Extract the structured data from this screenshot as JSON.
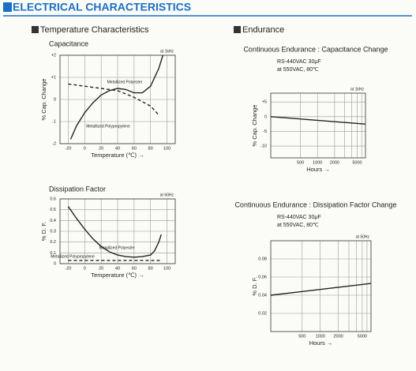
{
  "title": "ELECTRICAL CHARACTERISTICS",
  "sections": [
    "Temperature Characteristics",
    "Endurance"
  ],
  "chart_data": [
    {
      "type": "line",
      "title": "Capacitance",
      "note": "at 1kHz",
      "xlabel": "Temperature (℃) →",
      "ylabel": "% Cap. Change",
      "xlim": [
        -30,
        110
      ],
      "xticks": [
        -20,
        0,
        20,
        40,
        60,
        80,
        100
      ],
      "ylim": [
        -2,
        2
      ],
      "yticks": [
        {
          "value": 2,
          "label": "+2"
        },
        {
          "value": 1,
          "label": "+1"
        },
        0,
        -1,
        -2
      ],
      "grid": true,
      "log_x": false,
      "series": [
        {
          "name": "Metallized Polyester",
          "color": "#222222",
          "style": "solid",
          "x": [
            -17,
            -10,
            0,
            10,
            20,
            30,
            40,
            50,
            60,
            70,
            80,
            90,
            95
          ],
          "values": [
            -1.8,
            -1.2,
            -0.6,
            -0.15,
            0.2,
            0.4,
            0.5,
            0.45,
            0.3,
            0.3,
            0.6,
            1.4,
            2.0
          ]
        },
        {
          "name": "Metallized Polypropylene",
          "color": "#222222",
          "style": "dashed",
          "x": [
            -20,
            0,
            20,
            40,
            60,
            80,
            90
          ],
          "values": [
            0.7,
            0.6,
            0.5,
            0.4,
            0.1,
            -0.3,
            -0.7
          ]
        }
      ]
    },
    {
      "type": "line",
      "title": "Dissipation Factor",
      "note": "at 60Hz",
      "xlabel": "Temperature (℃) →",
      "ylabel": "% D. F.",
      "xlim": [
        -30,
        110
      ],
      "xticks": [
        -20,
        0,
        20,
        40,
        60,
        80,
        100
      ],
      "ylim": [
        0,
        0.6
      ],
      "yticks": [
        0.6,
        0.5,
        0.4,
        0.3,
        0.2,
        0.1,
        0
      ],
      "grid": true,
      "log_x": false,
      "series": [
        {
          "name": "Metallized Polyester",
          "color": "#222222",
          "style": "solid",
          "x": [
            -20,
            -10,
            0,
            10,
            20,
            30,
            40,
            50,
            60,
            70,
            80,
            85,
            90,
            93
          ],
          "values": [
            0.53,
            0.42,
            0.32,
            0.23,
            0.16,
            0.11,
            0.08,
            0.065,
            0.06,
            0.065,
            0.08,
            0.12,
            0.2,
            0.27
          ]
        },
        {
          "name": "Metallized Polypropylene",
          "color": "#222222",
          "style": "dashed",
          "x": [
            -20,
            92
          ],
          "values": [
            0.03,
            0.03
          ]
        }
      ]
    },
    {
      "type": "line",
      "title": "Continuous Endurance : Capacitance Change",
      "subtitle": [
        "RS-440VAC 30μF",
        "at 550VAC, 80℃"
      ],
      "note": "at 1kHz",
      "xlabel": "Hours →",
      "ylabel": "% Cap. Change",
      "xlim": [
        150,
        7000
      ],
      "xticks": [
        500,
        1000,
        2000,
        5000
      ],
      "xminor": [
        3000,
        4000,
        6000
      ],
      "ylim": [
        -14,
        8
      ],
      "yticks": [
        {
          "value": 5,
          "label": "+5"
        },
        0,
        -5,
        -10
      ],
      "grid": true,
      "log_x": true,
      "series": [
        {
          "color": "#222222",
          "style": "solid",
          "x": [
            150,
            7000
          ],
          "values": [
            0,
            -2.5
          ]
        }
      ]
    },
    {
      "type": "line",
      "title": "Continuous Endurance : Dissipation Factor Change",
      "subtitle": [
        "RS-440VAC 30μF",
        "at 550VAC, 80℃"
      ],
      "note": "at 50Hz",
      "xlabel": "Hours →",
      "ylabel": "% D. F.",
      "xlim": [
        150,
        7000
      ],
      "xticks": [
        500,
        1000,
        2000,
        5000
      ],
      "xminor": [
        3000,
        4000,
        6000
      ],
      "ylim": [
        0,
        0.1
      ],
      "yticks": [
        0.08,
        0.06,
        0.04,
        0.02
      ],
      "grid": true,
      "log_x": true,
      "series": [
        {
          "color": "#222222",
          "style": "solid",
          "x": [
            150,
            7000
          ],
          "values": [
            0.04,
            0.053
          ]
        }
      ]
    }
  ]
}
